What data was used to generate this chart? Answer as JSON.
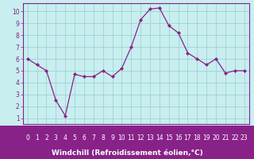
{
  "x": [
    0,
    1,
    2,
    3,
    4,
    5,
    6,
    7,
    8,
    9,
    10,
    11,
    12,
    13,
    14,
    15,
    16,
    17,
    18,
    19,
    20,
    21,
    22,
    23
  ],
  "y": [
    6.0,
    5.5,
    5.0,
    2.5,
    1.2,
    4.7,
    4.5,
    4.5,
    5.0,
    4.5,
    5.2,
    7.0,
    9.3,
    10.2,
    10.3,
    8.8,
    8.2,
    6.5,
    6.0,
    5.5,
    6.0,
    4.8,
    5.0,
    5.0
  ],
  "line_color": "#882288",
  "marker": "D",
  "marker_size": 2.0,
  "linewidth": 0.9,
  "xlabel": "Windchill (Refroidissement éolien,°C)",
  "xlabel_fontsize": 6.5,
  "bg_color": "#c8eef0",
  "grid_color": "#99cccc",
  "tick_color": "#882288",
  "axis_bar_color": "#882288",
  "axis_bar_text_color": "#ffffff",
  "ylim_min": 0.5,
  "ylim_max": 10.7,
  "xlim_min": -0.5,
  "xlim_max": 23.5,
  "yticks": [
    1,
    2,
    3,
    4,
    5,
    6,
    7,
    8,
    9,
    10
  ],
  "xticks": [
    0,
    1,
    2,
    3,
    4,
    5,
    6,
    7,
    8,
    9,
    10,
    11,
    12,
    13,
    14,
    15,
    16,
    17,
    18,
    19,
    20,
    21,
    22,
    23
  ],
  "tick_fontsize": 5.5,
  "spine_color": "#882288"
}
